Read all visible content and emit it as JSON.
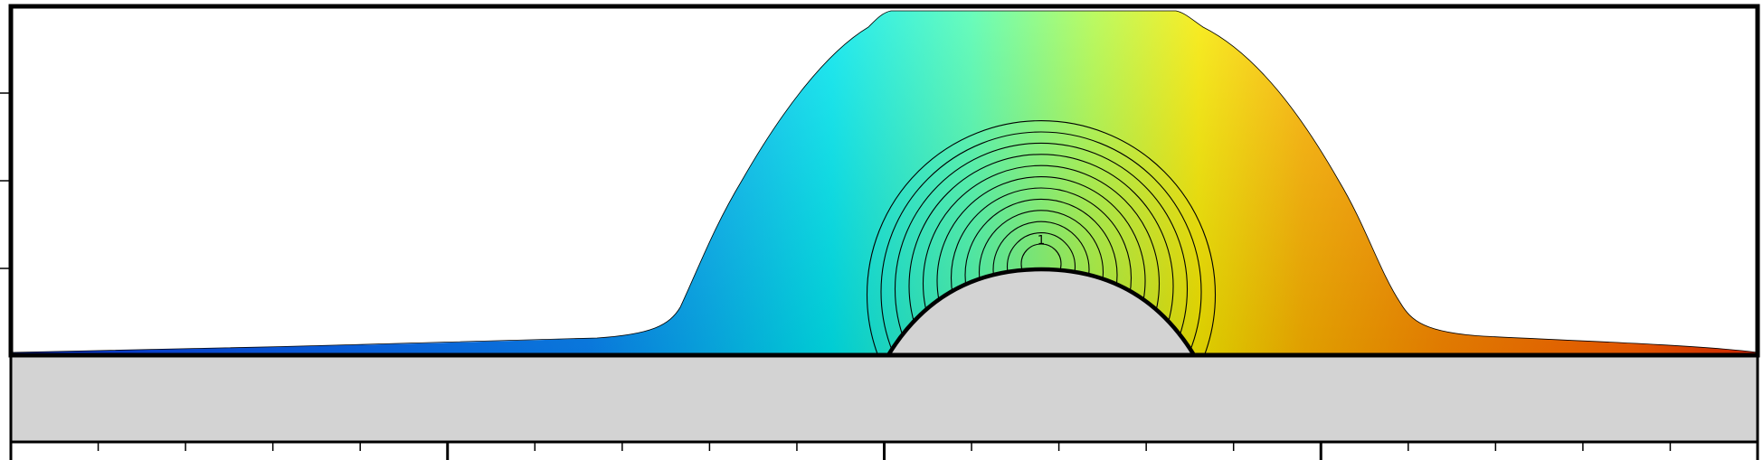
{
  "annotation": {
    "label": "1"
  }
}
